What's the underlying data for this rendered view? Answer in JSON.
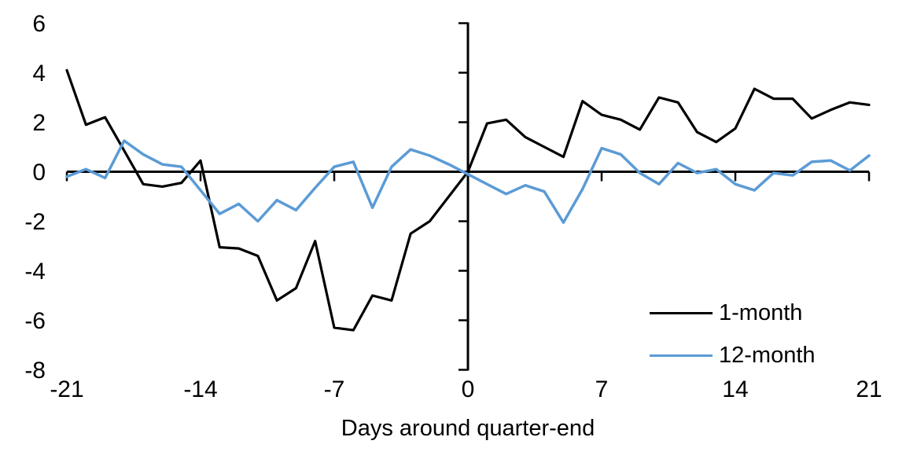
{
  "chart_data": {
    "type": "line",
    "title": "",
    "xlabel": "Days around quarter-end",
    "ylabel": "",
    "xlim": [
      -21,
      21
    ],
    "ylim": [
      -8,
      6
    ],
    "x_ticks": [
      -21,
      -14,
      -7,
      0,
      7,
      14,
      21
    ],
    "y_ticks": [
      6,
      4,
      2,
      0,
      -2,
      -4,
      -6,
      -8
    ],
    "grid": false,
    "legend_position": "inside-bottom-right",
    "x": [
      -21,
      -20,
      -19,
      -18,
      -17,
      -16,
      -15,
      -14,
      -13,
      -12,
      -11,
      -10,
      -9,
      -8,
      -7,
      -6,
      -5,
      -4,
      -3,
      -2,
      -1,
      0,
      1,
      2,
      3,
      4,
      5,
      6,
      7,
      8,
      9,
      10,
      11,
      12,
      13,
      14,
      15,
      16,
      17,
      18,
      19,
      20,
      21
    ],
    "series": [
      {
        "name": "1-month",
        "color": "#000000",
        "values": [
          4.1,
          1.9,
          2.2,
          0.85,
          -0.5,
          -0.6,
          -0.45,
          0.45,
          -3.05,
          -3.1,
          -3.4,
          -5.2,
          -4.7,
          -2.8,
          -6.3,
          -6.4,
          -5.0,
          -5.2,
          -2.5,
          -2.0,
          -1.0,
          0.0,
          1.95,
          2.1,
          1.4,
          1.0,
          0.6,
          2.85,
          2.3,
          2.1,
          1.7,
          3.0,
          2.8,
          1.6,
          1.2,
          1.75,
          3.35,
          2.95,
          2.95,
          2.15,
          2.5,
          2.8,
          2.7
        ]
      },
      {
        "name": "12-month",
        "color": "#5B9BD5",
        "values": [
          -0.2,
          0.1,
          -0.25,
          1.25,
          0.7,
          0.3,
          0.2,
          -0.75,
          -1.7,
          -1.3,
          -2.0,
          -1.15,
          -1.55,
          -0.65,
          0.2,
          0.4,
          -1.45,
          0.2,
          0.9,
          0.65,
          0.3,
          -0.1,
          -0.5,
          -0.9,
          -0.55,
          -0.8,
          -2.05,
          -0.7,
          0.95,
          0.7,
          -0.05,
          -0.5,
          0.35,
          -0.05,
          0.1,
          -0.5,
          -0.75,
          -0.05,
          -0.15,
          0.4,
          0.45,
          0.05,
          0.65
        ]
      }
    ]
  },
  "axis_colors": {
    "axis": "#000000",
    "tick_label": "#000000"
  }
}
